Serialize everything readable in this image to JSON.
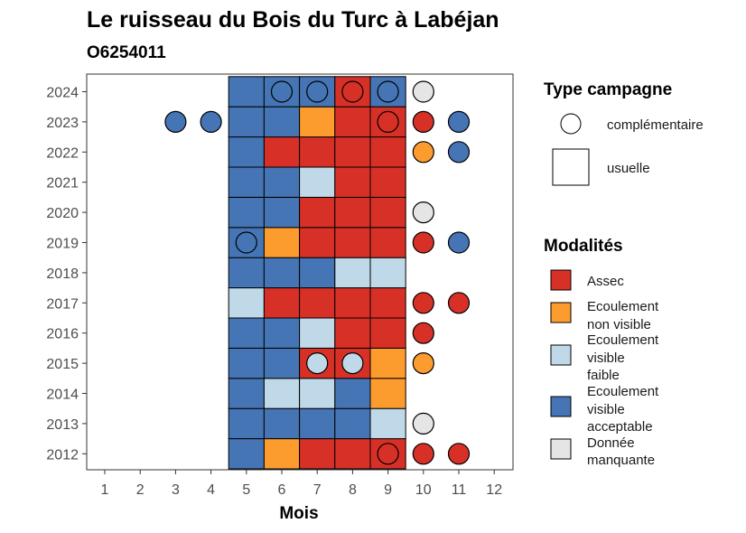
{
  "chart_data": {
    "type": "heatmap",
    "title": "Le ruisseau du Bois du Turc à Labéjan",
    "subtitle": "O6254011",
    "xlabel": "Mois",
    "ylabel": "",
    "x_ticks": [
      "1",
      "2",
      "3",
      "4",
      "5",
      "6",
      "7",
      "8",
      "9",
      "10",
      "11",
      "12"
    ],
    "y_ticks": [
      "2012",
      "2013",
      "2014",
      "2015",
      "2016",
      "2017",
      "2018",
      "2019",
      "2020",
      "2021",
      "2022",
      "2023",
      "2024"
    ],
    "colors": {
      "Assec": "#d73027",
      "Ecoulement non visible": "#fd9c2e",
      "Ecoulement visible faible": "#c0d9e8",
      "Ecoulement visible acceptable": "#4575b4",
      "Donnée manquante": "#e5e5e5"
    },
    "legend_type": {
      "title": "Type campagne",
      "items": [
        {
          "label": "complémentaire",
          "shape": "circle"
        },
        {
          "label": "usuelle",
          "shape": "square"
        }
      ]
    },
    "legend_modalites": {
      "title": "Modalités",
      "items": [
        {
          "key": "Assec",
          "lines": [
            "Assec"
          ]
        },
        {
          "key": "Ecoulement non visible",
          "lines": [
            "Ecoulement",
            "non visible"
          ]
        },
        {
          "key": "Ecoulement visible faible",
          "lines": [
            "Ecoulement",
            "visible",
            "faible"
          ]
        },
        {
          "key": "Ecoulement visible acceptable",
          "lines": [
            "Ecoulement",
            "visible",
            "acceptable"
          ]
        },
        {
          "key": "Donnée manquante",
          "lines": [
            "Donnée",
            "manquante"
          ]
        }
      ]
    },
    "usuelle": {
      "2024": [
        "Ecoulement visible acceptable",
        "Ecoulement visible acceptable",
        "Ecoulement visible acceptable",
        "Assec",
        "Ecoulement visible acceptable"
      ],
      "2023": [
        "Ecoulement visible acceptable",
        "Ecoulement visible acceptable",
        "Ecoulement non visible",
        "Assec",
        "Assec"
      ],
      "2022": [
        "Ecoulement visible acceptable",
        "Assec",
        "Assec",
        "Assec",
        "Assec"
      ],
      "2021": [
        "Ecoulement visible acceptable",
        "Ecoulement visible acceptable",
        "Ecoulement visible faible",
        "Assec",
        "Assec"
      ],
      "2020": [
        "Ecoulement visible acceptable",
        "Ecoulement visible acceptable",
        "Assec",
        "Assec",
        "Assec"
      ],
      "2019": [
        "Ecoulement visible acceptable",
        "Ecoulement non visible",
        "Assec",
        "Assec",
        "Assec"
      ],
      "2018": [
        "Ecoulement visible acceptable",
        "Ecoulement visible acceptable",
        "Ecoulement visible acceptable",
        "Ecoulement visible faible",
        "Ecoulement visible faible"
      ],
      "2017": [
        "Ecoulement visible faible",
        "Assec",
        "Assec",
        "Assec",
        "Assec"
      ],
      "2016": [
        "Ecoulement visible acceptable",
        "Ecoulement visible acceptable",
        "Ecoulement visible faible",
        "Assec",
        "Assec"
      ],
      "2015": [
        "Ecoulement visible acceptable",
        "Ecoulement visible acceptable",
        "Assec",
        "Assec",
        "Ecoulement non visible"
      ],
      "2014": [
        "Ecoulement visible acceptable",
        "Ecoulement visible faible",
        "Ecoulement visible faible",
        "Ecoulement visible acceptable",
        "Ecoulement non visible"
      ],
      "2013": [
        "Ecoulement visible acceptable",
        "Ecoulement visible acceptable",
        "Ecoulement visible acceptable",
        "Ecoulement visible acceptable",
        "Ecoulement visible faible"
      ],
      "2012": [
        "Ecoulement visible acceptable",
        "Ecoulement non visible",
        "Assec",
        "Assec",
        "Assec"
      ]
    },
    "usuelle_months": [
      5,
      6,
      7,
      8,
      9
    ],
    "complementaire": [
      {
        "year": "2024",
        "month": 6,
        "value": "Ecoulement visible acceptable"
      },
      {
        "year": "2024",
        "month": 7,
        "value": "Ecoulement visible acceptable"
      },
      {
        "year": "2024",
        "month": 8,
        "value": "Assec"
      },
      {
        "year": "2024",
        "month": 9,
        "value": "Ecoulement visible acceptable"
      },
      {
        "year": "2024",
        "month": 10,
        "value": "Donnée manquante"
      },
      {
        "year": "2023",
        "month": 3,
        "value": "Ecoulement visible acceptable"
      },
      {
        "year": "2023",
        "month": 4,
        "value": "Ecoulement visible acceptable"
      },
      {
        "year": "2023",
        "month": 9,
        "value": "Assec"
      },
      {
        "year": "2023",
        "month": 10,
        "value": "Assec"
      },
      {
        "year": "2023",
        "month": 11,
        "value": "Ecoulement visible acceptable"
      },
      {
        "year": "2022",
        "month": 10,
        "value": "Ecoulement non visible"
      },
      {
        "year": "2022",
        "month": 11,
        "value": "Ecoulement visible acceptable"
      },
      {
        "year": "2020",
        "month": 10,
        "value": "Donnée manquante"
      },
      {
        "year": "2019",
        "month": 5,
        "value": "Ecoulement visible acceptable"
      },
      {
        "year": "2019",
        "month": 10,
        "value": "Assec"
      },
      {
        "year": "2019",
        "month": 11,
        "value": "Ecoulement visible acceptable"
      },
      {
        "year": "2017",
        "month": 10,
        "value": "Assec"
      },
      {
        "year": "2017",
        "month": 11,
        "value": "Assec"
      },
      {
        "year": "2016",
        "month": 10,
        "value": "Assec"
      },
      {
        "year": "2015",
        "month": 7,
        "value": "Ecoulement visible faible"
      },
      {
        "year": "2015",
        "month": 8,
        "value": "Ecoulement visible faible"
      },
      {
        "year": "2015",
        "month": 10,
        "value": "Ecoulement non visible"
      },
      {
        "year": "2013",
        "month": 10,
        "value": "Donnée manquante"
      },
      {
        "year": "2012",
        "month": 9,
        "value": "Assec"
      },
      {
        "year": "2012",
        "month": 10,
        "value": "Assec"
      },
      {
        "year": "2012",
        "month": 11,
        "value": "Assec"
      }
    ]
  }
}
